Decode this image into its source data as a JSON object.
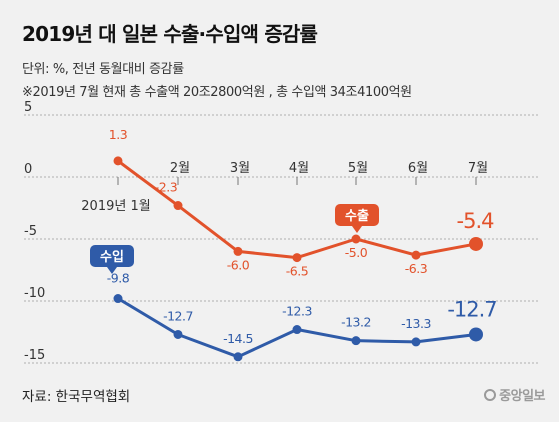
{
  "title": "2019년 대 일본 수출·수입액 증감률",
  "unit_note": "단위: %, 전년 동월대비 증감률",
  "note": "※2019년 7월 현재 총 수출액 20조2800억원 , 총 수입액 34조4100억원",
  "source": "자료: 한국무역협회",
  "brand": "중앙일보",
  "colors": {
    "export": "#e2522b",
    "import": "#2f5ba8",
    "background": "#f1f1f1"
  },
  "chart_data": {
    "type": "line",
    "categories": [
      "2019년 1월",
      "2월",
      "3월",
      "4월",
      "5월",
      "6월",
      "7월"
    ],
    "y_ticks": [
      "5",
      "0",
      "-5",
      "-10",
      "-15"
    ],
    "ylim": [
      -15,
      5
    ],
    "grid": "horizontal dashed",
    "series": [
      {
        "name": "수출",
        "values": [
          1.3,
          -2.3,
          -6.0,
          -6.5,
          -5.0,
          -6.3,
          -5.4
        ],
        "labels": [
          "1.3",
          "-2.3",
          "-6.0",
          "-6.5",
          "-5.0",
          "-6.3",
          "-5.4"
        ],
        "color": "#e2522b"
      },
      {
        "name": "수입",
        "values": [
          -9.8,
          -12.7,
          -14.5,
          -12.3,
          -13.2,
          -13.3,
          -12.7
        ],
        "labels": [
          "-9.8",
          "-12.7",
          "-14.5",
          "-12.3",
          "-13.2",
          "-13.3",
          "-12.7"
        ],
        "color": "#2f5ba8"
      }
    ]
  }
}
